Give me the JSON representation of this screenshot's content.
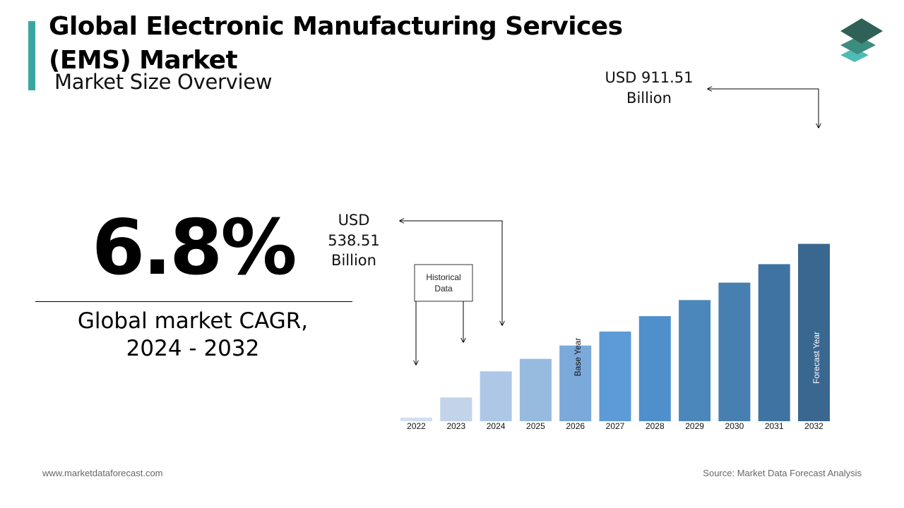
{
  "header": {
    "title": "Global Electronic Manufacturing Services (EMS) Market",
    "subtitle": "Market Size Overview"
  },
  "cagr": {
    "value": "6.8%",
    "label_line1": "Global market CAGR,",
    "label_line2": "2024 - 2032"
  },
  "annotations": {
    "value_2024": [
      "USD",
      "538.51",
      "Billion"
    ],
    "value_2032": [
      "USD 911.51",
      "Billion"
    ],
    "historical_box": [
      "Historical",
      "Data"
    ],
    "base_year": "Base Year",
    "forecast_year": "Forecast Year"
  },
  "footer": {
    "website": "www.marketdataforecast.com",
    "source": "Source: Market Data Forecast Analysis"
  },
  "colors": {
    "accent": "#3aa6a0",
    "logo_dark": "#2f6157",
    "logo_mid": "#3c8c80",
    "logo_light": "#4dbcb4"
  },
  "chart_data": {
    "type": "bar",
    "categories": [
      "2022",
      "2023",
      "2024",
      "2025",
      "2026",
      "2027",
      "2028",
      "2029",
      "2030",
      "2031",
      "2032"
    ],
    "values": [
      403,
      462,
      538.51,
      575,
      614,
      655,
      700,
      747,
      798,
      852,
      911.51
    ],
    "labeled_values": {
      "2024": "USD 538.51 Billion",
      "2032": "USD 911.51 Billion"
    },
    "bar_colors": [
      "#d3dff0",
      "#c2d3ea",
      "#aec7e6",
      "#97badf",
      "#7ba9da",
      "#5c9bd6",
      "#4f8fcb",
      "#4c87bb",
      "#467fb0",
      "#3f74a2",
      "#3a6790"
    ],
    "xlabel": "",
    "ylabel": "",
    "base_year": "2026",
    "forecast_year": "2032"
  }
}
